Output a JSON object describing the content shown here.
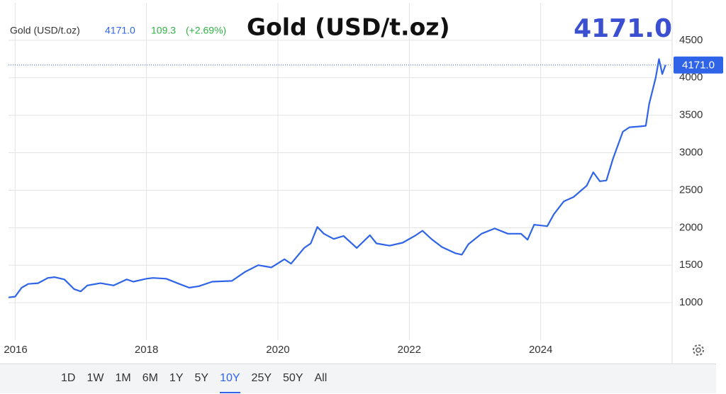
{
  "chart_data": {
    "type": "line",
    "title": "Gold (USD/t.oz)",
    "price_label": "4171.0",
    "change": "109.3",
    "change_pct": "(+2.69%)",
    "x": [
      2015.9,
      2016.0,
      2016.1,
      2016.2,
      2016.35,
      2016.5,
      2016.6,
      2016.75,
      2016.9,
      2017.0,
      2017.1,
      2017.3,
      2017.5,
      2017.7,
      2017.8,
      2018.0,
      2018.1,
      2018.3,
      2018.5,
      2018.65,
      2018.8,
      2019.0,
      2019.3,
      2019.5,
      2019.7,
      2019.9,
      2020.1,
      2020.2,
      2020.4,
      2020.5,
      2020.6,
      2020.7,
      2020.85,
      2021.0,
      2021.2,
      2021.4,
      2021.5,
      2021.7,
      2021.9,
      2022.1,
      2022.2,
      2022.35,
      2022.5,
      2022.7,
      2022.8,
      2022.9,
      2023.1,
      2023.3,
      2023.5,
      2023.7,
      2023.8,
      2023.9,
      2024.1,
      2024.2,
      2024.35,
      2024.5,
      2024.7,
      2024.8,
      2024.9,
      2025.0,
      2025.1,
      2025.25,
      2025.35,
      2025.5,
      2025.6,
      2025.65,
      2025.75,
      2025.8,
      2025.85,
      2025.9
    ],
    "series": [
      {
        "name": "Gold (USD/t.oz)",
        "color": "#2f64e8",
        "values": [
          1070,
          1080,
          1200,
          1250,
          1260,
          1330,
          1340,
          1310,
          1180,
          1150,
          1230,
          1260,
          1230,
          1310,
          1280,
          1320,
          1330,
          1320,
          1250,
          1200,
          1220,
          1280,
          1290,
          1410,
          1500,
          1470,
          1580,
          1520,
          1730,
          1790,
          2010,
          1920,
          1850,
          1890,
          1730,
          1900,
          1790,
          1760,
          1800,
          1900,
          1960,
          1840,
          1740,
          1660,
          1640,
          1780,
          1920,
          1990,
          1920,
          1920,
          1840,
          2040,
          2020,
          2180,
          2350,
          2410,
          2560,
          2740,
          2620,
          2630,
          2920,
          3280,
          3340,
          3350,
          3360,
          3650,
          4000,
          4250,
          4050,
          4171
        ]
      }
    ],
    "xlim": [
      2015.9,
      2026.0
    ],
    "xticks": [
      2016,
      2018,
      2020,
      2022,
      2024
    ],
    "ylim": [
      500,
      5000
    ],
    "yticks": [
      1000,
      1500,
      2000,
      2500,
      3000,
      3500,
      4000,
      4500
    ],
    "grid": true,
    "ranges": [
      "1D",
      "1W",
      "1M",
      "6M",
      "1Y",
      "5Y",
      "10Y",
      "25Y",
      "50Y",
      "All"
    ],
    "active_range": 6
  }
}
